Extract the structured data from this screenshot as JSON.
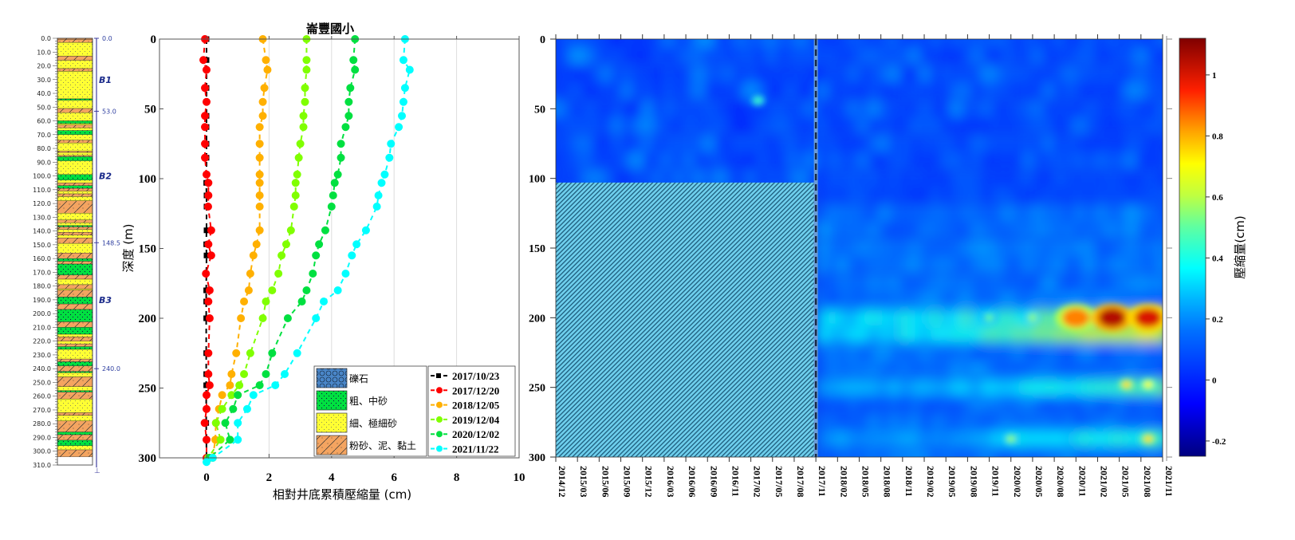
{
  "chart_data": [
    {
      "type": "table",
      "name": "borehole-log",
      "depth_ticks": [
        0.0,
        10.0,
        20.0,
        30.0,
        40.0,
        50.0,
        60.0,
        70.0,
        80.0,
        90.0,
        100.0,
        110.0,
        120.0,
        130.0,
        140.0,
        150.0,
        160.0,
        170.0,
        180.0,
        190.0,
        200.0,
        210.0,
        220.0,
        230.0,
        240.0,
        250.0,
        260.0,
        270.0,
        280.0,
        290.0,
        300.0,
        310.0
      ],
      "depth_tick_labels": [
        "0.0",
        "10.0",
        "20.0",
        "30.0",
        "40.0",
        "50.0",
        "60.0",
        "70.0",
        "80.0",
        "90.0",
        "100.0",
        "110.0",
        "120.0",
        "130.0",
        "140.0",
        "150.0",
        "160.0",
        "170.0",
        "180.0",
        "190.0",
        "200.0",
        "210.0",
        "220.0",
        "230.0",
        "240.0",
        "250.0",
        "260.0",
        "270.0",
        "280.0",
        "290.0",
        "300.0",
        "310.0"
      ],
      "unit_boundaries": [
        {
          "depth": 0.0,
          "label": "0.0"
        },
        {
          "depth": 53.0,
          "label": "53.0"
        },
        {
          "depth": 148.5,
          "label": "148.5"
        },
        {
          "depth": 240.0,
          "label": "240.0"
        }
      ],
      "units": [
        {
          "name": "B1",
          "mid": 30
        },
        {
          "name": "B2",
          "mid": 100
        },
        {
          "name": "B3",
          "mid": 190
        }
      ],
      "layers": [
        {
          "top": 0,
          "bottom": 1,
          "type": "silt"
        },
        {
          "top": 1,
          "bottom": 3,
          "type": "silt"
        },
        {
          "top": 3,
          "bottom": 13,
          "type": "fine"
        },
        {
          "top": 13,
          "bottom": 16,
          "type": "silt"
        },
        {
          "top": 16,
          "bottom": 22,
          "type": "fine"
        },
        {
          "top": 22,
          "bottom": 24,
          "type": "silt"
        },
        {
          "top": 24,
          "bottom": 44,
          "type": "fine"
        },
        {
          "top": 44,
          "bottom": 45,
          "type": "coarse"
        },
        {
          "top": 45,
          "bottom": 51,
          "type": "fine"
        },
        {
          "top": 51,
          "bottom": 54,
          "type": "silt"
        },
        {
          "top": 54,
          "bottom": 60,
          "type": "fine"
        },
        {
          "top": 60,
          "bottom": 62,
          "type": "coarse"
        },
        {
          "top": 62,
          "bottom": 63,
          "type": "fine"
        },
        {
          "top": 63,
          "bottom": 65,
          "type": "silt"
        },
        {
          "top": 65,
          "bottom": 67,
          "type": "fine"
        },
        {
          "top": 67,
          "bottom": 70,
          "type": "coarse"
        },
        {
          "top": 70,
          "bottom": 74,
          "type": "fine"
        },
        {
          "top": 74,
          "bottom": 76,
          "type": "silt"
        },
        {
          "top": 76,
          "bottom": 82,
          "type": "fine"
        },
        {
          "top": 82,
          "bottom": 83,
          "type": "silt"
        },
        {
          "top": 83,
          "bottom": 85,
          "type": "fine"
        },
        {
          "top": 85,
          "bottom": 86,
          "type": "silt"
        },
        {
          "top": 86,
          "bottom": 89,
          "type": "coarse"
        },
        {
          "top": 89,
          "bottom": 99,
          "type": "fine"
        },
        {
          "top": 99,
          "bottom": 103,
          "type": "coarse"
        },
        {
          "top": 103,
          "bottom": 105,
          "type": "fine"
        },
        {
          "top": 105,
          "bottom": 107,
          "type": "silt"
        },
        {
          "top": 107,
          "bottom": 109,
          "type": "coarse"
        },
        {
          "top": 109,
          "bottom": 111,
          "type": "silt"
        },
        {
          "top": 111,
          "bottom": 113,
          "type": "fine"
        },
        {
          "top": 113,
          "bottom": 115,
          "type": "silt"
        },
        {
          "top": 115,
          "bottom": 118,
          "type": "fine"
        },
        {
          "top": 118,
          "bottom": 127,
          "type": "silt"
        },
        {
          "top": 127,
          "bottom": 132,
          "type": "fine"
        },
        {
          "top": 132,
          "bottom": 134,
          "type": "silt"
        },
        {
          "top": 134,
          "bottom": 136,
          "type": "fine"
        },
        {
          "top": 136,
          "bottom": 137,
          "type": "coarse"
        },
        {
          "top": 137,
          "bottom": 139,
          "type": "silt"
        },
        {
          "top": 139,
          "bottom": 141,
          "type": "fine"
        },
        {
          "top": 141,
          "bottom": 143,
          "type": "silt"
        },
        {
          "top": 143,
          "bottom": 145,
          "type": "fine"
        },
        {
          "top": 145,
          "bottom": 149,
          "type": "silt"
        },
        {
          "top": 149,
          "bottom": 156,
          "type": "fine"
        },
        {
          "top": 156,
          "bottom": 160,
          "type": "silt"
        },
        {
          "top": 160,
          "bottom": 162,
          "type": "coarse"
        },
        {
          "top": 162,
          "bottom": 164,
          "type": "silt"
        },
        {
          "top": 164,
          "bottom": 172,
          "type": "coarse"
        },
        {
          "top": 172,
          "bottom": 175,
          "type": "silt"
        },
        {
          "top": 175,
          "bottom": 179,
          "type": "fine"
        },
        {
          "top": 179,
          "bottom": 182,
          "type": "silt"
        },
        {
          "top": 182,
          "bottom": 183,
          "type": "fine"
        },
        {
          "top": 183,
          "bottom": 188,
          "type": "silt"
        },
        {
          "top": 188,
          "bottom": 193,
          "type": "coarse"
        },
        {
          "top": 193,
          "bottom": 197,
          "type": "silt"
        },
        {
          "top": 197,
          "bottom": 206,
          "type": "coarse"
        },
        {
          "top": 206,
          "bottom": 210,
          "type": "silt"
        },
        {
          "top": 210,
          "bottom": 215,
          "type": "coarse"
        },
        {
          "top": 215,
          "bottom": 217,
          "type": "fine"
        },
        {
          "top": 217,
          "bottom": 220,
          "type": "silt"
        },
        {
          "top": 220,
          "bottom": 222,
          "type": "fine"
        },
        {
          "top": 222,
          "bottom": 224,
          "type": "silt"
        },
        {
          "top": 224,
          "bottom": 226,
          "type": "coarse"
        },
        {
          "top": 226,
          "bottom": 233,
          "type": "fine"
        },
        {
          "top": 233,
          "bottom": 235,
          "type": "silt"
        },
        {
          "top": 235,
          "bottom": 238,
          "type": "coarse"
        },
        {
          "top": 238,
          "bottom": 242,
          "type": "silt"
        },
        {
          "top": 242,
          "bottom": 243,
          "type": "coarse"
        },
        {
          "top": 243,
          "bottom": 246,
          "type": "fine"
        },
        {
          "top": 246,
          "bottom": 253,
          "type": "silt"
        },
        {
          "top": 253,
          "bottom": 256,
          "type": "fine"
        },
        {
          "top": 256,
          "bottom": 257,
          "type": "coarse"
        },
        {
          "top": 257,
          "bottom": 262,
          "type": "silt"
        },
        {
          "top": 262,
          "bottom": 272,
          "type": "fine"
        },
        {
          "top": 272,
          "bottom": 274,
          "type": "silt"
        },
        {
          "top": 274,
          "bottom": 278,
          "type": "fine"
        },
        {
          "top": 278,
          "bottom": 286,
          "type": "silt"
        },
        {
          "top": 286,
          "bottom": 288,
          "type": "coarse"
        },
        {
          "top": 288,
          "bottom": 292,
          "type": "silt"
        },
        {
          "top": 292,
          "bottom": 296,
          "type": "coarse"
        },
        {
          "top": 296,
          "bottom": 299,
          "type": "fine"
        },
        {
          "top": 299,
          "bottom": 304,
          "type": "silt"
        }
      ],
      "layer_colors": {
        "coarse": "#00e040",
        "fine": "#ffff33",
        "silt": "#f4a460",
        "gravel": "#4a86c8"
      }
    },
    {
      "type": "line",
      "name": "cumulative-compaction-profile",
      "title": "崙豐國小",
      "xlabel": "相對井底累積壓縮量 (cm)",
      "ylabel": "深度 (m)",
      "xlim": [
        -1.5,
        10
      ],
      "ylim": [
        0,
        305
      ],
      "y_inverted": true,
      "xticks": [
        0,
        2,
        4,
        6,
        8,
        10
      ],
      "yticks": [
        0,
        50,
        100,
        150,
        200,
        250,
        300
      ],
      "grid": "vertical",
      "legend": "bottom-right",
      "depths": [
        0,
        15,
        22,
        35,
        45,
        55,
        63,
        75,
        85,
        97,
        103,
        112,
        120,
        137,
        147,
        155,
        168,
        180,
        188,
        200,
        225,
        240,
        248,
        255,
        265,
        275,
        287,
        300,
        303
      ],
      "series": [
        {
          "name": "2017/10/23",
          "color": "#000000",
          "marker": "square",
          "values": [
            0,
            0,
            0,
            0,
            0,
            0,
            0,
            0,
            0,
            0,
            -0.01,
            0,
            0,
            0,
            -0.01,
            0,
            null,
            -0.01,
            -0.01,
            -0.01,
            -0.01,
            -0.01,
            -0.01,
            null,
            null,
            -0.01,
            null,
            0,
            null
          ]
        },
        {
          "name": "2017/12/20",
          "color": "#ff0000",
          "marker": "circle",
          "values": [
            -0.05,
            -0.1,
            0,
            -0.05,
            0,
            -0.05,
            -0.05,
            -0.05,
            -0.05,
            0,
            0.06,
            0.06,
            0.05,
            0.15,
            0.06,
            0.15,
            -0.02,
            0.1,
            0.06,
            0.1,
            0.06,
            0.06,
            0.1,
            0,
            0,
            -0.06,
            0,
            0,
            null
          ]
        },
        {
          "name": "2018/12/05",
          "color": "#ffb000",
          "marker": "circle",
          "values": [
            1.8,
            1.9,
            1.95,
            1.85,
            1.8,
            1.8,
            1.7,
            1.7,
            1.7,
            1.7,
            1.7,
            1.7,
            1.7,
            1.7,
            1.6,
            1.5,
            1.4,
            1.35,
            1.2,
            1.1,
            0.95,
            0.8,
            0.75,
            0.5,
            0.4,
            0.3,
            0.28,
            0.2,
            null
          ]
        },
        {
          "name": "2019/12/04",
          "color": "#80ff00",
          "marker": "circle",
          "values": [
            3.2,
            3.2,
            3.2,
            3.15,
            3.15,
            3.1,
            3.1,
            3.0,
            2.95,
            2.9,
            2.85,
            2.85,
            2.8,
            2.7,
            2.55,
            2.4,
            2.3,
            2.1,
            1.9,
            1.8,
            1.4,
            1.2,
            1.05,
            0.8,
            0.5,
            0.3,
            0.45,
            0.05,
            null
          ]
        },
        {
          "name": "2020/12/02",
          "color": "#00e040",
          "marker": "circle",
          "values": [
            4.75,
            4.7,
            4.75,
            4.6,
            4.55,
            4.55,
            4.45,
            4.3,
            4.3,
            4.2,
            4.1,
            4.05,
            4.0,
            3.8,
            3.6,
            3.5,
            3.4,
            3.2,
            3.05,
            2.6,
            2.1,
            1.9,
            1.7,
            1.0,
            0.85,
            0.6,
            0.75,
            0.1,
            null
          ]
        },
        {
          "name": "2021/11/22",
          "color": "#00ffff",
          "marker": "circle",
          "values": [
            6.35,
            6.3,
            6.5,
            6.35,
            6.3,
            6.25,
            6.15,
            5.9,
            5.85,
            5.7,
            5.6,
            5.5,
            5.45,
            5.1,
            4.8,
            4.65,
            4.45,
            4.2,
            3.75,
            3.5,
            2.9,
            2.5,
            2.2,
            1.5,
            1.3,
            1.0,
            1.0,
            0.2,
            0
          ]
        }
      ],
      "lithology_legend": [
        {
          "label": "礫石",
          "pattern": "gravel"
        },
        {
          "label": "粗、中砂",
          "pattern": "coarse"
        },
        {
          "label": "細、極細砂",
          "pattern": "fine"
        },
        {
          "label": "粉砂、泥、黏土",
          "pattern": "silt"
        }
      ]
    },
    {
      "type": "heatmap",
      "name": "compaction-time-depth",
      "ylabel": "",
      "ylim": [
        0,
        300
      ],
      "y_inverted": true,
      "yticks": [
        0,
        50,
        100,
        150,
        200,
        250,
        300
      ],
      "xtick_labels": [
        "2014/12",
        "2015/03",
        "2015/06",
        "2015/09",
        "2015/12",
        "2016/03",
        "2016/06",
        "2016/09",
        "2016/11",
        "2017/02",
        "2017/05",
        "2017/08",
        "2017/11",
        "2018/02",
        "2018/05",
        "2018/08",
        "2018/11",
        "2019/02",
        "2019/05",
        "2019/08",
        "2019/11",
        "2020/02",
        "2020/05",
        "2020/08",
        "2020/11",
        "2021/02",
        "2021/05",
        "2021/08",
        "2021/11"
      ],
      "no_data_region": {
        "x_from": "2014/12",
        "x_to": "2017/11",
        "depth_from": 103,
        "depth_to": 300
      },
      "divider_at": "2017/11",
      "colorbar": {
        "label": "壓縮量(cm)",
        "range": [
          -0.25,
          1.12
        ],
        "ticks": [
          -0.2,
          0,
          0.2,
          0.4,
          0.6,
          0.8,
          1
        ],
        "tick_labels": [
          "-0.2",
          "0",
          "0.2",
          "0.4",
          "0.6",
          "0.8",
          "1"
        ],
        "colormap": "jet"
      },
      "hotspots": [
        {
          "time": "2020/11",
          "depth": 200,
          "value": 0.85
        },
        {
          "time": "2021/04",
          "depth": 200,
          "value": 1.05
        },
        {
          "time": "2021/09",
          "depth": 200,
          "value": 1.0
        },
        {
          "time": "2021/06",
          "depth": 248,
          "value": 0.75
        },
        {
          "time": "2021/09",
          "depth": 248,
          "value": 0.7
        },
        {
          "time": "2021/09",
          "depth": 287,
          "value": 0.75
        },
        {
          "time": "2020/02",
          "depth": 287,
          "value": 0.55
        },
        {
          "time": "2017/03",
          "depth": 44,
          "value": 0.45
        },
        {
          "time": "2019/11",
          "depth": 200,
          "value": 0.5
        },
        {
          "time": "2020/05",
          "depth": 200,
          "value": 0.55
        }
      ]
    }
  ]
}
